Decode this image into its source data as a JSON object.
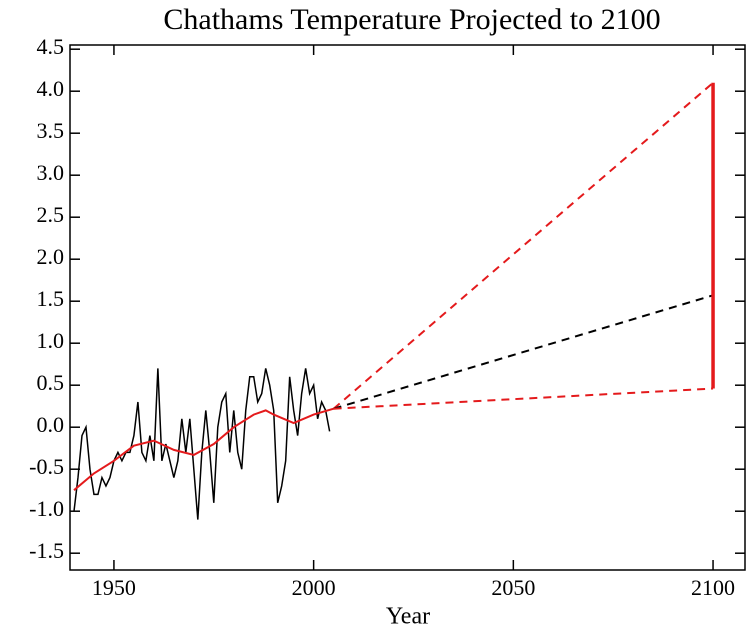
{
  "chart_data": {
    "type": "line",
    "title": "Chathams Temperature Projected to 2100",
    "x_label": "Year",
    "xlim": [
      1939,
      2108
    ],
    "xticks": [
      1950,
      2000,
      2050,
      2100
    ],
    "ylim": [
      -1.7,
      4.55
    ],
    "yticks": [
      -1.5,
      -1.0,
      -0.5,
      0.0,
      0.5,
      1.0,
      1.5,
      2.0,
      2.5,
      3.0,
      3.5,
      4.0,
      4.5
    ],
    "grid": false,
    "series": [
      {
        "color": "#000000",
        "dashed": false,
        "width": 1.5,
        "x": [
          1940,
          1941,
          1942,
          1943,
          1944,
          1945,
          1946,
          1947,
          1948,
          1949,
          1950,
          1951,
          1952,
          1953,
          1954,
          1955,
          1956,
          1957,
          1958,
          1959,
          1960,
          1961,
          1962,
          1963,
          1964,
          1965,
          1966,
          1967,
          1968,
          1969,
          1970,
          1971,
          1972,
          1973,
          1974,
          1975,
          1976,
          1977,
          1978,
          1979,
          1980,
          1981,
          1982,
          1983,
          1984,
          1985,
          1986,
          1987,
          1988,
          1989,
          1990,
          1991,
          1992,
          1993,
          1994,
          1995,
          1996,
          1997,
          1998,
          1999,
          2000,
          2001,
          2002,
          2003,
          2004
        ],
        "values": [
          -1.0,
          -0.6,
          -0.1,
          0.0,
          -0.5,
          -0.8,
          -0.8,
          -0.6,
          -0.7,
          -0.6,
          -0.4,
          -0.3,
          -0.4,
          -0.3,
          -0.3,
          -0.1,
          0.3,
          -0.3,
          -0.4,
          -0.1,
          -0.4,
          0.7,
          -0.4,
          -0.2,
          -0.4,
          -0.6,
          -0.4,
          0.1,
          -0.3,
          0.1,
          -0.5,
          -1.1,
          -0.3,
          0.2,
          -0.3,
          -0.9,
          0.0,
          0.3,
          0.4,
          -0.3,
          0.2,
          -0.3,
          -0.5,
          0.2,
          0.6,
          0.6,
          0.3,
          0.4,
          0.7,
          0.5,
          0.2,
          -0.9,
          -0.7,
          -0.4,
          0.6,
          0.2,
          -0.1,
          0.4,
          0.7,
          0.4,
          0.5,
          0.1,
          0.3,
          0.2,
          -0.05
        ]
      },
      {
        "color": "#e41a1c",
        "dashed": false,
        "width": 2,
        "x": [
          1940,
          1945,
          1950,
          1955,
          1960,
          1965,
          1970,
          1975,
          1980,
          1985,
          1988,
          1990,
          1995,
          2000,
          2005
        ],
        "values": [
          -0.75,
          -0.55,
          -0.4,
          -0.22,
          -0.16,
          -0.27,
          -0.33,
          -0.2,
          0.0,
          0.15,
          0.2,
          0.15,
          0.05,
          0.15,
          0.22
        ]
      },
      {
        "color": "#e41a1c",
        "dashed": true,
        "width": 2,
        "x": [
          2005,
          2100
        ],
        "values": [
          0.22,
          4.1
        ]
      },
      {
        "color": "#000000",
        "dashed": true,
        "width": 2,
        "x": [
          2005,
          2100
        ],
        "values": [
          0.22,
          1.57
        ]
      },
      {
        "color": "#e41a1c",
        "dashed": true,
        "width": 2,
        "x": [
          2005,
          2100
        ],
        "values": [
          0.22,
          0.46
        ]
      },
      {
        "color": "#e41a1c",
        "dashed": false,
        "width": 3.5,
        "x": [
          2100,
          2100
        ],
        "values": [
          0.46,
          4.1
        ]
      }
    ]
  }
}
